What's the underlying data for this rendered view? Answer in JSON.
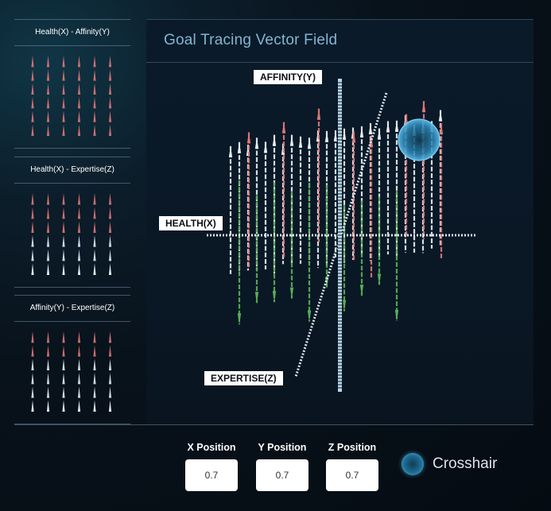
{
  "colors": {
    "positive": "#e07878",
    "neutral": "#e6eef4",
    "negative": "#5aae5a",
    "cursor": "#5ab8e6"
  },
  "left_panel": {
    "plots": [
      {
        "title": "Health(X) - Affinity(Y)",
        "rows": 6,
        "cols": 6,
        "palette": [
          "positive",
          "positive",
          "positive",
          "positive",
          "positive",
          "positive"
        ]
      },
      {
        "title": "Health(X) - Expertise(Z)",
        "rows": 6,
        "cols": 6,
        "palette": [
          "positive",
          "positive",
          "positive",
          "neutral",
          "neutral",
          "neutral"
        ]
      },
      {
        "title": "Affinity(Y) - Expertise(Z)",
        "rows": 6,
        "cols": 6,
        "palette": [
          "positive",
          "positive",
          "neutral",
          "neutral",
          "neutral",
          "neutral"
        ]
      }
    ]
  },
  "main": {
    "title": "Goal Tracing Vector Field",
    "axes": {
      "y_label": "AFFINITY(Y)",
      "x_label": "HEALTH(X)",
      "z_label": "EXPERTISE(Z)"
    }
  },
  "controls": {
    "x": {
      "label": "X Position",
      "value": "0.7"
    },
    "y": {
      "label": "Y Position",
      "value": "0.7"
    },
    "z": {
      "label": "Z Position",
      "value": "0.7"
    }
  },
  "crosshair": {
    "label": "Crosshair",
    "icon": "crosshair-sphere-icon",
    "x": 0.7,
    "y": 0.7,
    "z": 0.7
  }
}
